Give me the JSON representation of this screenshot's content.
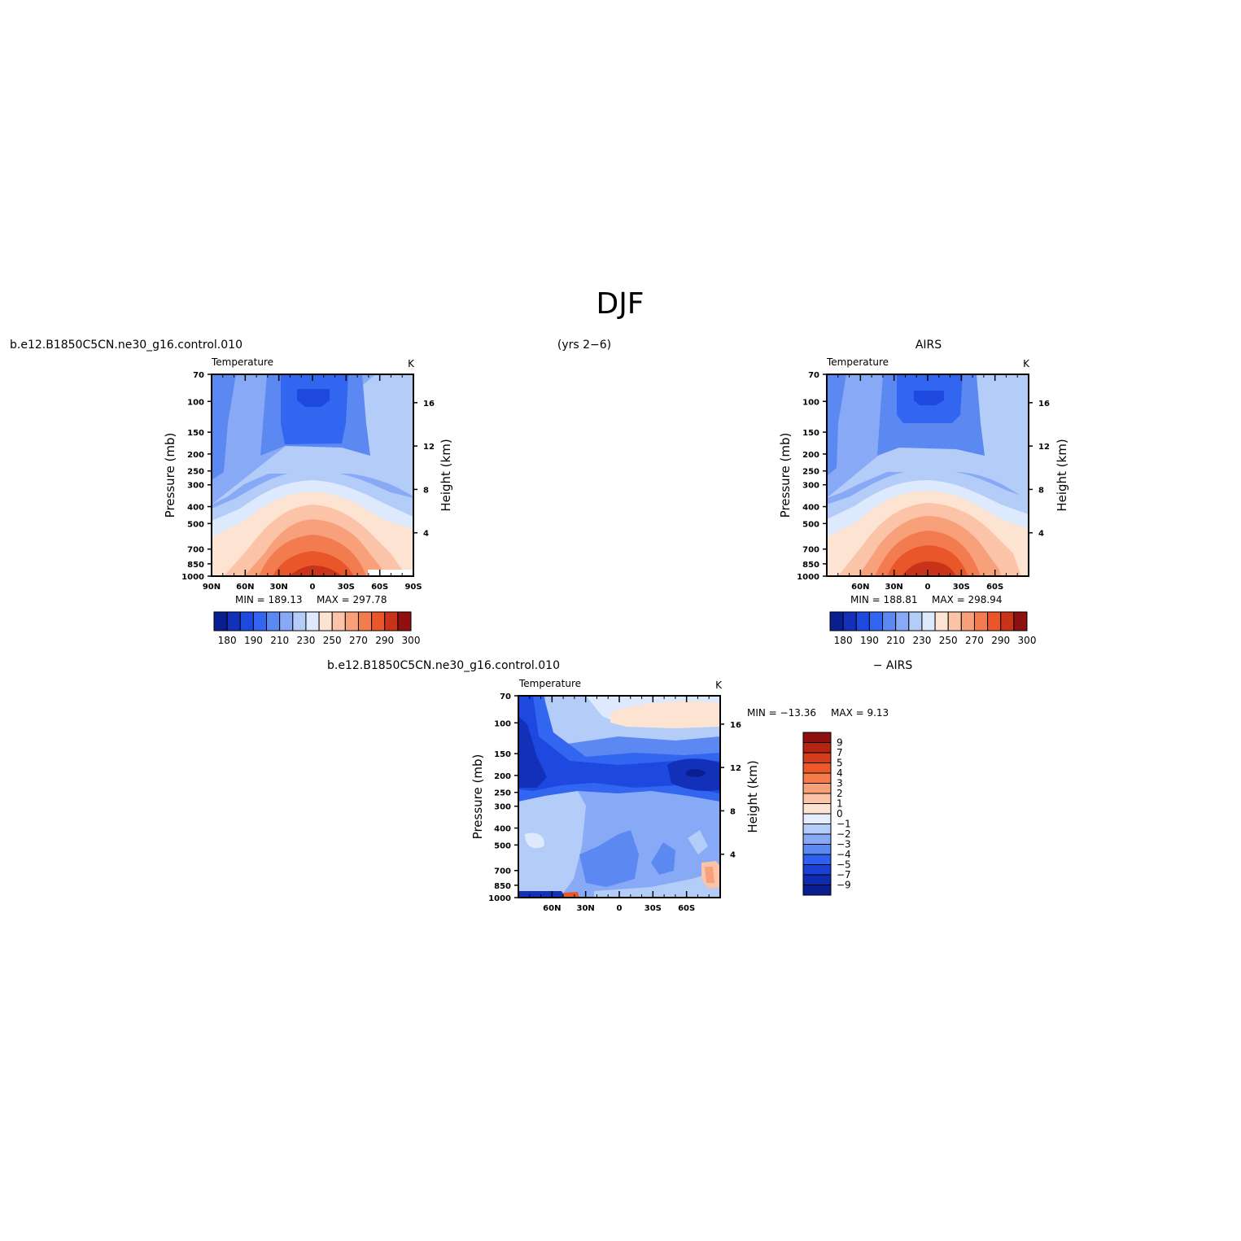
{
  "page": {
    "title": "DJF",
    "top_left_label": "b.e12.B1850C5CN.ne30_g16.control.010",
    "top_center_label": "(yrs 2−6)",
    "top_right_label": "AIRS",
    "bottom_left_label": "b.e12.B1850C5CN.ne30_g16.control.010",
    "bottom_right_label": "− AIRS"
  },
  "chart_data": [
    {
      "type": "heatmap",
      "variable": "Temperature",
      "units": "K",
      "min_label": "MIN =  189.13",
      "max_label": "MAX =  297.78",
      "ylabel": "Pressure (mb)",
      "y2label": "Height (km)",
      "x_ticks": [
        "90N",
        "60N",
        "30N",
        "0",
        "30S",
        "60S",
        "90S"
      ],
      "y_ticks": [
        "70",
        "100",
        "150",
        "200",
        "250",
        "300",
        "400",
        "500",
        "700",
        "850",
        "1000"
      ],
      "y2_ticks": [
        "16",
        "12",
        "8",
        "4"
      ],
      "colorbar_labels": [
        "180",
        "190",
        "210",
        "230",
        "250",
        "270",
        "290",
        "300"
      ],
      "colors": [
        "#0a1f8f",
        "#1230b8",
        "#1e49e0",
        "#3366f0",
        "#5c88f2",
        "#88aaf6",
        "#b4ccf8",
        "#dde9fc",
        "#fde3d1",
        "#fbc3a7",
        "#f8a07a",
        "#f37b50",
        "#e9562a",
        "#c9331a",
        "#8e1010"
      ]
    },
    {
      "type": "heatmap",
      "variable": "Temperature",
      "units": "K",
      "min_label": "MIN =  188.81",
      "max_label": "MAX =  298.94",
      "ylabel": "Pressure (mb)",
      "y2label": "Height (km)",
      "x_ticks": [
        "60N",
        "30N",
        "0",
        "30S",
        "60S"
      ],
      "y_ticks": [
        "70",
        "100",
        "150",
        "200",
        "250",
        "300",
        "400",
        "500",
        "700",
        "850",
        "1000"
      ],
      "y2_ticks": [
        "16",
        "12",
        "8",
        "4"
      ],
      "colorbar_labels": [
        "180",
        "190",
        "210",
        "230",
        "250",
        "270",
        "290",
        "300"
      ],
      "colors": [
        "#0a1f8f",
        "#1230b8",
        "#1e49e0",
        "#3366f0",
        "#5c88f2",
        "#88aaf6",
        "#b4ccf8",
        "#dde9fc",
        "#fde3d1",
        "#fbc3a7",
        "#f8a07a",
        "#f37b50",
        "#e9562a",
        "#c9331a",
        "#8e1010"
      ]
    },
    {
      "type": "heatmap",
      "variable": "Temperature",
      "units": "K",
      "min_label": "MIN = −13.36",
      "max_label": "MAX =    9.13",
      "ylabel": "Pressure (mb)",
      "y2label": "Height (km)",
      "x_ticks": [
        "60N",
        "30N",
        "0",
        "30S",
        "60S"
      ],
      "y_ticks": [
        "70",
        "100",
        "150",
        "200",
        "250",
        "300",
        "400",
        "500",
        "700",
        "850",
        "1000"
      ],
      "y2_ticks": [
        "16",
        "12",
        "8",
        "4"
      ],
      "colorbar_labels": [
        "9",
        "7",
        "5",
        "4",
        "3",
        "2",
        "1",
        "0",
        "−1",
        "−2",
        "−3",
        "−4",
        "−5",
        "−7",
        "−9"
      ],
      "colors": [
        "#8e1010",
        "#b52412",
        "#d43c1a",
        "#ec5a2a",
        "#f47c4c",
        "#f8a07a",
        "#fbc3a7",
        "#fde3d1",
        "#e4eefc",
        "#b4ccf8",
        "#88aaf6",
        "#5c88f2",
        "#2f5fee",
        "#1a3fd6",
        "#0f2bb0",
        "#0a1f8f"
      ]
    }
  ]
}
